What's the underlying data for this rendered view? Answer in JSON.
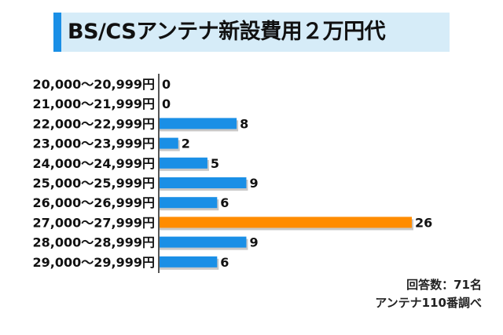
{
  "title": "BS/CSアンテナ新設費用２万円代",
  "notes": {
    "respondents": "回答数：71名",
    "source": "アンテナ110番調べ"
  },
  "colors": {
    "bar": "#1a8fe6",
    "highlight": "#ff8c00",
    "shadow": "#c8c8c8",
    "title_accent": "#1a8fe6",
    "title_bg": "#d6ecf8"
  },
  "chart_data": {
    "type": "bar",
    "orientation": "horizontal",
    "categories": [
      "20,000～20,999円",
      "21,000～21,999円",
      "22,000～22,999円",
      "23,000～23,999円",
      "24,000～24,999円",
      "25,000～25,999円",
      "26,000～26,999円",
      "27,000～27,999円",
      "28,000～28,999円",
      "29,000～29,999円"
    ],
    "values": [
      0,
      0,
      8,
      2,
      5,
      9,
      6,
      26,
      9,
      6
    ],
    "highlight_index": 7,
    "xlim": [
      0,
      26
    ],
    "grid": false,
    "legend": "none"
  }
}
